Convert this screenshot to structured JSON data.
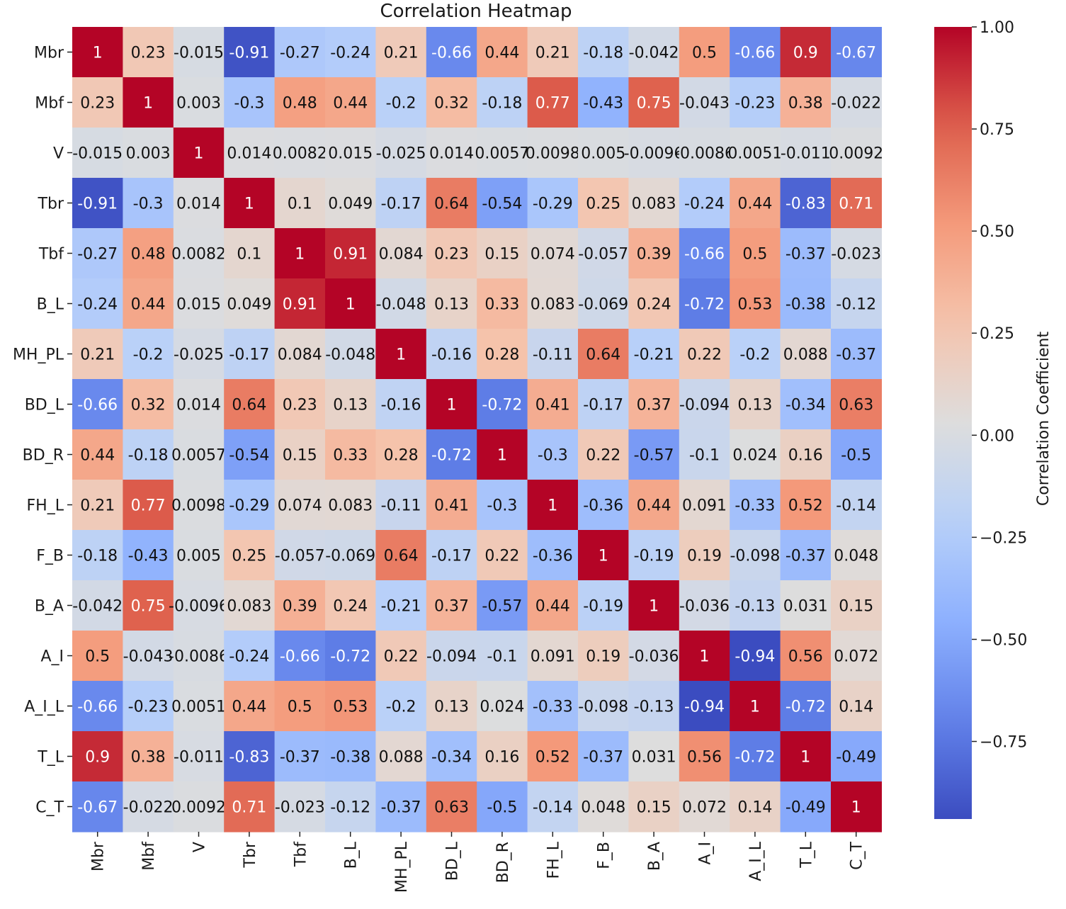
{
  "chart_data": {
    "type": "heatmap",
    "title": "Correlation Heatmap",
    "colorbar_label": "Correlation Coefficient",
    "colorbar_ticks": [
      "1.00",
      "0.75",
      "0.50",
      "0.25",
      "0.00",
      "−0.25",
      "−0.50",
      "−0.75"
    ],
    "colorbar_tick_values": [
      1.0,
      0.75,
      0.5,
      0.25,
      0.0,
      -0.25,
      -0.5,
      -0.75
    ],
    "vmin": -0.94,
    "vmax": 1.0,
    "colormap": "coolwarm",
    "rows": [
      "Mbr",
      "Mbf",
      "V",
      "Tbr",
      "Tbf",
      "B_L",
      "MH_PL",
      "BD_L",
      "BD_R",
      "FH_L",
      "F_B",
      "B_A",
      "A_I",
      "A_I_L",
      "T_L",
      "C_T"
    ],
    "columns": [
      "Mbr",
      "Mbf",
      "V",
      "Tbr",
      "Tbf",
      "B_L",
      "MH_PL",
      "BD_L",
      "BD_R",
      "FH_L",
      "F_B",
      "B_A",
      "A_I",
      "A_I_L",
      "T_L",
      "C_T"
    ],
    "values": [
      [
        1,
        0.23,
        -0.015,
        -0.91,
        -0.27,
        -0.24,
        0.21,
        -0.66,
        0.44,
        0.21,
        -0.18,
        -0.042,
        0.5,
        -0.66,
        0.9,
        -0.67
      ],
      [
        0.23,
        1,
        0.003,
        -0.3,
        0.48,
        0.44,
        -0.2,
        0.32,
        -0.18,
        0.77,
        -0.43,
        0.75,
        -0.043,
        -0.23,
        0.38,
        -0.022
      ],
      [
        -0.015,
        0.003,
        1,
        0.014,
        0.0082,
        0.015,
        -0.025,
        0.014,
        0.0057,
        0.0098,
        0.005,
        -0.0096,
        -0.0086,
        0.0051,
        -0.011,
        0.0092
      ],
      [
        -0.91,
        -0.3,
        0.014,
        1,
        0.1,
        0.049,
        -0.17,
        0.64,
        -0.54,
        -0.29,
        0.25,
        0.083,
        -0.24,
        0.44,
        -0.83,
        0.71
      ],
      [
        -0.27,
        0.48,
        0.0082,
        0.1,
        1,
        0.91,
        0.084,
        0.23,
        0.15,
        0.074,
        -0.057,
        0.39,
        -0.66,
        0.5,
        -0.37,
        -0.023
      ],
      [
        -0.24,
        0.44,
        0.015,
        0.049,
        0.91,
        1,
        -0.048,
        0.13,
        0.33,
        0.083,
        -0.069,
        0.24,
        -0.72,
        0.53,
        -0.38,
        -0.12
      ],
      [
        0.21,
        -0.2,
        -0.025,
        -0.17,
        0.084,
        -0.048,
        1,
        -0.16,
        0.28,
        -0.11,
        0.64,
        -0.21,
        0.22,
        -0.2,
        0.088,
        -0.37
      ],
      [
        -0.66,
        0.32,
        0.014,
        0.64,
        0.23,
        0.13,
        -0.16,
        1,
        -0.72,
        0.41,
        -0.17,
        0.37,
        -0.094,
        0.13,
        -0.34,
        0.63
      ],
      [
        0.44,
        -0.18,
        0.0057,
        -0.54,
        0.15,
        0.33,
        0.28,
        -0.72,
        1,
        -0.3,
        0.22,
        -0.57,
        -0.1,
        0.024,
        0.16,
        -0.5
      ],
      [
        0.21,
        0.77,
        0.0098,
        -0.29,
        0.074,
        0.083,
        -0.11,
        0.41,
        -0.3,
        1,
        -0.36,
        0.44,
        0.091,
        -0.33,
        0.52,
        -0.14
      ],
      [
        -0.18,
        -0.43,
        0.005,
        0.25,
        -0.057,
        -0.069,
        0.64,
        -0.17,
        0.22,
        -0.36,
        1,
        -0.19,
        0.19,
        -0.098,
        -0.37,
        0.048
      ],
      [
        -0.042,
        0.75,
        -0.0096,
        0.083,
        0.39,
        0.24,
        -0.21,
        0.37,
        -0.57,
        0.44,
        -0.19,
        1,
        -0.036,
        -0.13,
        0.031,
        0.15
      ],
      [
        0.5,
        -0.043,
        -0.0086,
        -0.24,
        -0.66,
        -0.72,
        0.22,
        -0.094,
        -0.1,
        0.091,
        0.19,
        -0.036,
        1,
        -0.94,
        0.56,
        0.072
      ],
      [
        -0.66,
        -0.23,
        0.0051,
        0.44,
        0.5,
        0.53,
        -0.2,
        0.13,
        0.024,
        -0.33,
        -0.098,
        -0.13,
        -0.94,
        1,
        -0.72,
        0.14
      ],
      [
        0.9,
        0.38,
        -0.011,
        -0.83,
        -0.37,
        -0.38,
        0.088,
        -0.34,
        0.16,
        0.52,
        -0.37,
        0.031,
        0.56,
        -0.72,
        1,
        -0.49
      ],
      [
        -0.67,
        -0.022,
        0.0092,
        0.71,
        -0.023,
        -0.12,
        -0.37,
        0.63,
        -0.5,
        -0.14,
        0.048,
        0.15,
        0.072,
        0.14,
        -0.49,
        1
      ]
    ]
  }
}
